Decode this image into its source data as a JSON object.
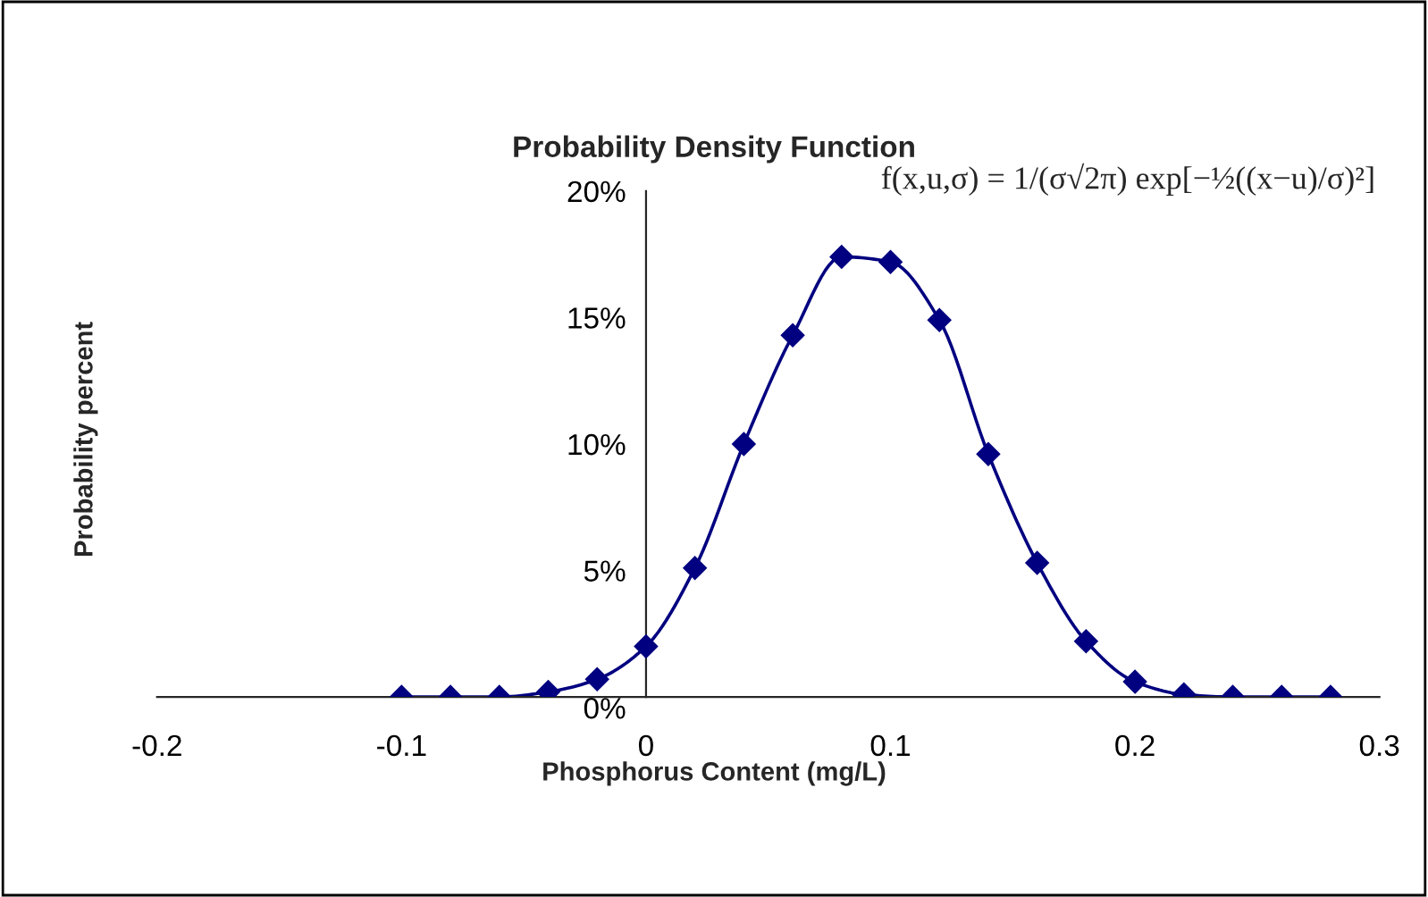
{
  "chart_data": {
    "type": "line",
    "title": "Probability Density Function",
    "xlabel": "Phosphorus Content (mg/L)",
    "ylabel": "Probability percent",
    "x": [
      -0.1,
      -0.08,
      -0.06,
      -0.04,
      -0.02,
      0,
      0.02,
      0.04,
      0.06,
      0.08,
      0.1,
      0.12,
      0.14,
      0.16,
      0.18,
      0.2,
      0.22,
      0.24,
      0.26,
      0.28
    ],
    "series": [
      {
        "color": "#000080",
        "values": [
          0,
          0,
          0,
          0.2,
          0.7,
          2.0,
          5.1,
          10.0,
          14.3,
          17.4,
          17.2,
          14.9,
          9.6,
          5.3,
          2.2,
          0.6,
          0.1,
          0,
          0,
          0
        ]
      }
    ],
    "marker": "diamond",
    "line_style": "solid",
    "grid": false,
    "legend": false,
    "xlim": [
      -0.2,
      0.3
    ],
    "xticks": [
      -0.2,
      -0.1,
      0,
      0.1,
      0.2,
      0.3
    ],
    "ylim": [
      0,
      20
    ],
    "yticks": [
      {
        "value": 0,
        "label": "0%"
      },
      {
        "value": 5,
        "label": "5%"
      },
      {
        "value": 10,
        "label": "10%"
      },
      {
        "value": 15,
        "label": "15%"
      },
      {
        "value": 20,
        "label": "20%"
      }
    ],
    "annotations": [
      "f(x,u,σ) = 1/(σ√2π) exp[−½((x−u)/σ)²]"
    ]
  }
}
